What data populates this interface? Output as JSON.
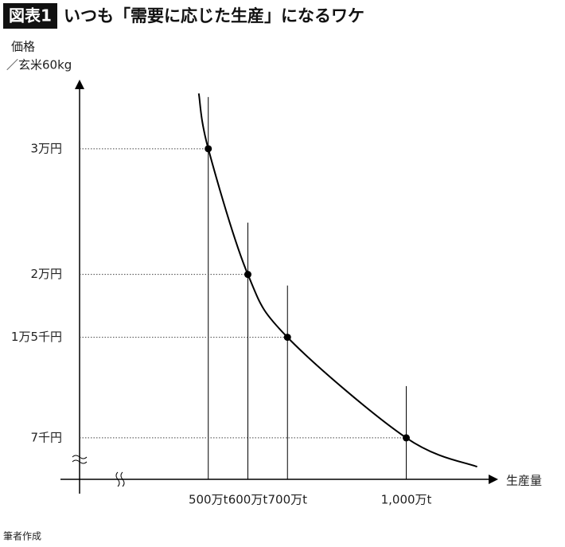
{
  "header": {
    "badge": "図表1",
    "title": "いつも「需要に応じた生産」になるワケ"
  },
  "chart_data": {
    "type": "line",
    "y_label": [
      "価格",
      "／玄米60kg"
    ],
    "x_label": "生産量",
    "x": [
      500,
      600,
      700,
      1000
    ],
    "values": [
      30000,
      20000,
      15000,
      7000
    ],
    "curve": {
      "x": [
        476,
        500,
        600,
        700,
        1000,
        1179
      ],
      "values": [
        34400,
        30000,
        20000,
        15000,
        7000,
        4700
      ]
    },
    "xlim": [
      175,
      1220
    ],
    "ylim": [
      3700,
      35500
    ],
    "xticks": [
      {
        "value": 500,
        "label": "500万t"
      },
      {
        "value": 600,
        "label": "600万t"
      },
      {
        "value": 700,
        "label": "700万t"
      },
      {
        "value": 1000,
        "label": "1,000万t"
      }
    ],
    "yticks": [
      {
        "value": 7000,
        "label": "7千円"
      },
      {
        "value": 15000,
        "label": "1万5千円"
      },
      {
        "value": 20000,
        "label": "2万円"
      },
      {
        "value": 30000,
        "label": "3万円"
      }
    ],
    "color": "#000000"
  },
  "source": "筆者作成"
}
